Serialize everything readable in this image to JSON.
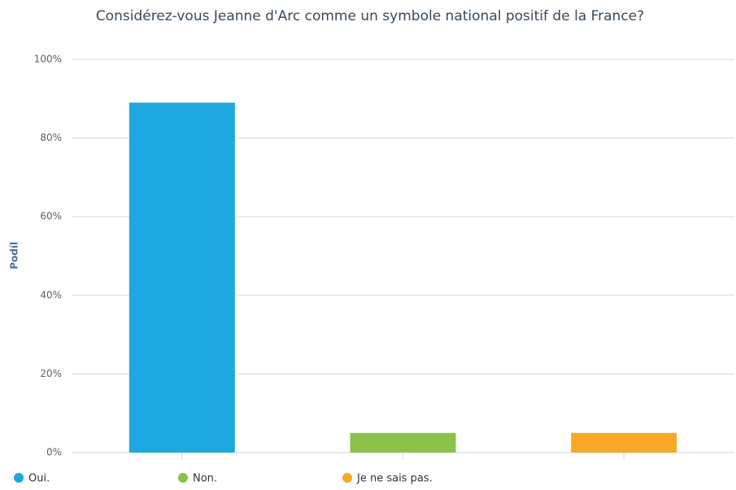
{
  "chart_data": {
    "type": "bar",
    "title": "Considérez-vous Jeanne d'Arc comme un symbole national positif de la France?",
    "y_label": "Podíl",
    "series": [
      {
        "name": "Oui.",
        "color": "#1fa8e0",
        "values": [
          89
        ]
      },
      {
        "name": "Non.",
        "color": "#8bc34a",
        "values": [
          5
        ]
      },
      {
        "name": "Je ne sais pas.",
        "color": "#f9a825",
        "values": [
          5
        ]
      }
    ],
    "ylim": [
      0,
      100
    ],
    "yticks": [
      {
        "value": 0,
        "label": "0%"
      },
      {
        "value": 20,
        "label": "20%"
      },
      {
        "value": 40,
        "label": "40%"
      },
      {
        "value": 60,
        "label": "60%"
      },
      {
        "value": 80,
        "label": "80%"
      },
      {
        "value": 100,
        "label": "100%"
      }
    ],
    "grid": true,
    "legend": "bottom"
  }
}
